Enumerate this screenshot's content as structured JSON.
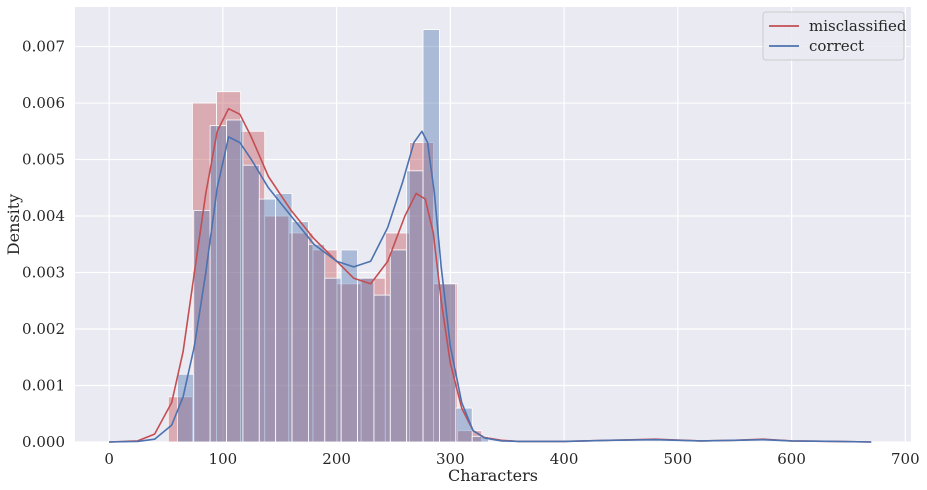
{
  "chart_data": {
    "type": "histogram",
    "xlabel": "Characters",
    "ylabel": "Density",
    "xlim": [
      -30,
      705
    ],
    "ylim": [
      0,
      0.0077
    ],
    "x_ticks": [
      0,
      100,
      200,
      300,
      400,
      500,
      600,
      700
    ],
    "y_ticks": [
      0.0,
      0.001,
      0.002,
      0.003,
      0.004,
      0.005,
      0.006,
      0.007
    ],
    "y_tick_labels": [
      "0.000",
      "0.001",
      "0.002",
      "0.003",
      "0.004",
      "0.005",
      "0.006",
      "0.007"
    ],
    "grid": true,
    "legend_position": "top-right",
    "series": [
      {
        "name": "misclassified",
        "color": "#c44e52",
        "histogram": {
          "bin_start": 52,
          "bin_width": 21.2,
          "density": [
            0.0008,
            0.006,
            0.0062,
            0.0055,
            0.004,
            0.0037,
            0.0034,
            0.0028,
            0.0029,
            0.0037,
            0.0053,
            0.0028,
            0.0002
          ]
        },
        "kde": {
          "x": [
            0,
            25,
            40,
            55,
            65,
            75,
            85,
            95,
            105,
            115,
            125,
            140,
            160,
            180,
            200,
            215,
            230,
            245,
            260,
            270,
            278,
            285,
            292,
            300,
            310,
            320,
            330,
            345,
            360,
            400,
            440,
            480,
            520,
            550,
            575,
            600,
            640,
            670
          ],
          "y": [
            0,
            2e-05,
            0.00014,
            0.0007,
            0.0016,
            0.003,
            0.0044,
            0.0055,
            0.0059,
            0.0058,
            0.0054,
            0.0047,
            0.0041,
            0.0036,
            0.0032,
            0.0029,
            0.0028,
            0.0032,
            0.004,
            0.0044,
            0.0043,
            0.0037,
            0.0025,
            0.0014,
            0.0006,
            0.0002,
            8e-05,
            3e-05,
            1e-05,
            1e-05,
            3e-05,
            5e-05,
            2e-05,
            3e-05,
            5e-05,
            2e-05,
            1e-05,
            0
          ]
        }
      },
      {
        "name": "correct",
        "color": "#4c72b0",
        "histogram": {
          "bin_start": 60,
          "bin_width": 14.4,
          "density": [
            0.0012,
            0.0041,
            0.0056,
            0.0057,
            0.0049,
            0.0043,
            0.0044,
            0.0039,
            0.0035,
            0.0029,
            0.0034,
            0.0029,
            0.0026,
            0.0034,
            0.0048,
            0.0073,
            0.0028,
            0.0006,
            0.0001
          ]
        },
        "kde": {
          "x": [
            0,
            25,
            40,
            55,
            65,
            75,
            85,
            95,
            105,
            115,
            125,
            140,
            160,
            180,
            200,
            215,
            230,
            245,
            258,
            268,
            275,
            280,
            286,
            292,
            300,
            310,
            320,
            330,
            345,
            360,
            400,
            440,
            480,
            520,
            550,
            575,
            600,
            640,
            670
          ],
          "y": [
            0,
            1e-05,
            5e-05,
            0.0003,
            0.0008,
            0.0017,
            0.003,
            0.0045,
            0.0054,
            0.0053,
            0.005,
            0.0045,
            0.004,
            0.0035,
            0.0032,
            0.0031,
            0.0032,
            0.0038,
            0.0046,
            0.0053,
            0.0055,
            0.0053,
            0.0044,
            0.0031,
            0.0017,
            0.0007,
            0.0002,
            7e-05,
            2e-05,
            1e-05,
            1e-05,
            3e-05,
            4e-05,
            2e-05,
            3e-05,
            4e-05,
            2e-05,
            1e-05,
            0
          ]
        }
      }
    ]
  }
}
